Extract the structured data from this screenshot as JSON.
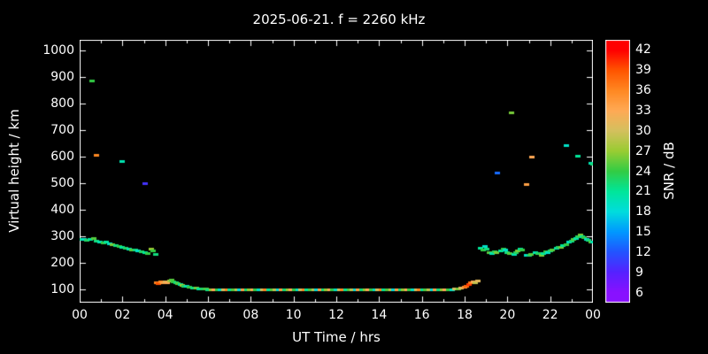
{
  "chart_data": {
    "type": "scatter",
    "title": "2025-06-21. f = 2260 kHz",
    "xlabel": "UT Time / hrs",
    "ylabel": "Virtual height / km",
    "xlim": [
      0,
      24
    ],
    "ylim": [
      50,
      1040
    ],
    "background": "#000000",
    "frame_color": "#ffffff",
    "grid": false,
    "xticks": {
      "values": [
        0,
        2,
        4,
        6,
        8,
        10,
        12,
        14,
        16,
        18,
        20,
        22,
        24
      ],
      "labels": [
        "00",
        "02",
        "04",
        "06",
        "08",
        "10",
        "12",
        "14",
        "16",
        "18",
        "20",
        "22",
        "00"
      ],
      "minor_values": [
        1,
        3,
        5,
        7,
        9,
        11,
        13,
        15,
        17,
        19,
        21,
        23
      ]
    },
    "yticks": {
      "values": [
        100,
        200,
        300,
        400,
        500,
        600,
        700,
        800,
        900,
        1000
      ],
      "labels": [
        "100",
        "200",
        "300",
        "400",
        "500",
        "600",
        "700",
        "800",
        "900",
        "1000"
      ]
    },
    "colorbar": {
      "label": "SNR / dB",
      "min": 4.5,
      "max": 43.5,
      "ticks": [
        42,
        39,
        36,
        33,
        30,
        27,
        24,
        21,
        18,
        15,
        12,
        9,
        6
      ]
    },
    "colormap": [
      {
        "value": 6,
        "color": "#8811ff"
      },
      {
        "value": 9,
        "color": "#5522ff"
      },
      {
        "value": 12,
        "color": "#2255ff"
      },
      {
        "value": 15,
        "color": "#0099ff"
      },
      {
        "value": 18,
        "color": "#00dddd"
      },
      {
        "value": 21,
        "color": "#00e699"
      },
      {
        "value": 24,
        "color": "#33cc44"
      },
      {
        "value": 27,
        "color": "#99cc33"
      },
      {
        "value": 30,
        "color": "#d4c05e"
      },
      {
        "value": 33,
        "color": "#ffaa55"
      },
      {
        "value": 36,
        "color": "#ff8822"
      },
      {
        "value": 39,
        "color": "#ff5500"
      },
      {
        "value": 42,
        "color": "#ff0000"
      }
    ],
    "points": [
      [
        0.05,
        291,
        21
      ],
      [
        0.2,
        289,
        19
      ],
      [
        0.35,
        286,
        23
      ],
      [
        0.5,
        290,
        21
      ],
      [
        0.65,
        293,
        25
      ],
      [
        0.8,
        285,
        22
      ],
      [
        0.95,
        281,
        20
      ],
      [
        1.1,
        278,
        24
      ],
      [
        1.25,
        281,
        21
      ],
      [
        1.4,
        274,
        19
      ],
      [
        1.55,
        270,
        26
      ],
      [
        1.7,
        267,
        22
      ],
      [
        1.85,
        263,
        24
      ],
      [
        2.0,
        259,
        21
      ],
      [
        2.15,
        257,
        23
      ],
      [
        2.3,
        254,
        20
      ],
      [
        2.45,
        251,
        25
      ],
      [
        2.6,
        249,
        22
      ],
      [
        2.75,
        247,
        19
      ],
      [
        2.9,
        244,
        23
      ],
      [
        3.05,
        241,
        21
      ],
      [
        3.2,
        238,
        24
      ],
      [
        3.35,
        252,
        27
      ],
      [
        3.45,
        247,
        24
      ],
      [
        3.55,
        234,
        22
      ],
      [
        3.6,
        128,
        36
      ],
      [
        3.7,
        125,
        39
      ],
      [
        3.8,
        129,
        36
      ],
      [
        3.9,
        126,
        34
      ],
      [
        4.0,
        131,
        31
      ],
      [
        4.1,
        128,
        33
      ],
      [
        4.2,
        134,
        28
      ],
      [
        4.3,
        137,
        25
      ],
      [
        4.4,
        130,
        24
      ],
      [
        4.5,
        126,
        22
      ],
      [
        4.6,
        122,
        25
      ],
      [
        4.7,
        119,
        21
      ],
      [
        4.8,
        116,
        27
      ],
      [
        4.9,
        114,
        23
      ],
      [
        5.0,
        112,
        20
      ],
      [
        5.15,
        110,
        24
      ],
      [
        5.3,
        108,
        22
      ],
      [
        5.45,
        107,
        26
      ],
      [
        5.6,
        105,
        21
      ],
      [
        5.75,
        104,
        23
      ],
      [
        5.9,
        103,
        25
      ],
      [
        6.0,
        100,
        22
      ],
      [
        6.15,
        99,
        27
      ],
      [
        6.3,
        100,
        33
      ],
      [
        6.45,
        101,
        24
      ],
      [
        6.6,
        100,
        19
      ],
      [
        6.75,
        99,
        30
      ],
      [
        6.9,
        100,
        36
      ],
      [
        7.05,
        100,
        21
      ],
      [
        7.2,
        101,
        25
      ],
      [
        7.35,
        100,
        29
      ],
      [
        7.5,
        99,
        18
      ],
      [
        7.65,
        100,
        34
      ],
      [
        7.8,
        100,
        22
      ],
      [
        7.95,
        99,
        27
      ],
      [
        8.1,
        100,
        33
      ],
      [
        8.25,
        101,
        24
      ],
      [
        8.4,
        100,
        19
      ],
      [
        8.55,
        99,
        30
      ],
      [
        8.7,
        100,
        36
      ],
      [
        8.85,
        100,
        21
      ],
      [
        9.0,
        101,
        25
      ],
      [
        9.15,
        100,
        29
      ],
      [
        9.3,
        99,
        18
      ],
      [
        9.45,
        100,
        34
      ],
      [
        9.6,
        100,
        22
      ],
      [
        9.75,
        99,
        27
      ],
      [
        9.9,
        100,
        33
      ],
      [
        10.05,
        101,
        24
      ],
      [
        10.2,
        100,
        19
      ],
      [
        10.35,
        99,
        30
      ],
      [
        10.5,
        100,
        36
      ],
      [
        10.65,
        100,
        21
      ],
      [
        10.8,
        101,
        25
      ],
      [
        10.95,
        100,
        29
      ],
      [
        11.1,
        99,
        18
      ],
      [
        11.25,
        100,
        34
      ],
      [
        11.4,
        100,
        22
      ],
      [
        11.55,
        99,
        27
      ],
      [
        11.7,
        100,
        33
      ],
      [
        11.85,
        101,
        24
      ],
      [
        12.0,
        100,
        19
      ],
      [
        12.15,
        99,
        30
      ],
      [
        12.3,
        100,
        36
      ],
      [
        12.45,
        100,
        21
      ],
      [
        12.6,
        101,
        25
      ],
      [
        12.75,
        100,
        29
      ],
      [
        12.9,
        99,
        18
      ],
      [
        13.05,
        100,
        34
      ],
      [
        13.2,
        100,
        22
      ],
      [
        13.35,
        99,
        27
      ],
      [
        13.5,
        100,
        33
      ],
      [
        13.65,
        101,
        24
      ],
      [
        13.8,
        100,
        19
      ],
      [
        13.95,
        99,
        30
      ],
      [
        14.1,
        100,
        36
      ],
      [
        14.25,
        100,
        21
      ],
      [
        14.4,
        101,
        25
      ],
      [
        14.55,
        100,
        29
      ],
      [
        14.7,
        99,
        18
      ],
      [
        14.85,
        100,
        34
      ],
      [
        15.0,
        100,
        22
      ],
      [
        15.15,
        99,
        27
      ],
      [
        15.3,
        100,
        33
      ],
      [
        15.45,
        101,
        24
      ],
      [
        15.6,
        100,
        19
      ],
      [
        15.75,
        99,
        30
      ],
      [
        15.9,
        100,
        36
      ],
      [
        16.05,
        100,
        21
      ],
      [
        16.2,
        101,
        25
      ],
      [
        16.35,
        100,
        29
      ],
      [
        16.5,
        99,
        18
      ],
      [
        16.65,
        100,
        34
      ],
      [
        16.8,
        100,
        22
      ],
      [
        16.95,
        99,
        27
      ],
      [
        17.1,
        100,
        33
      ],
      [
        17.25,
        101,
        24
      ],
      [
        17.4,
        100,
        19
      ],
      [
        17.55,
        102,
        30
      ],
      [
        17.7,
        104,
        26
      ],
      [
        17.85,
        106,
        31
      ],
      [
        18.0,
        110,
        35
      ],
      [
        18.1,
        115,
        38
      ],
      [
        18.2,
        121,
        40
      ],
      [
        18.3,
        127,
        37
      ],
      [
        18.4,
        131,
        33
      ],
      [
        18.5,
        128,
        29
      ],
      [
        18.6,
        134,
        31
      ],
      [
        18.75,
        257,
        21
      ],
      [
        18.85,
        249,
        24
      ],
      [
        18.95,
        262,
        19
      ],
      [
        19.05,
        253,
        22
      ],
      [
        19.15,
        241,
        25
      ],
      [
        19.3,
        236,
        20
      ],
      [
        19.4,
        243,
        23
      ],
      [
        19.5,
        239,
        26
      ],
      [
        19.7,
        246,
        21
      ],
      [
        19.8,
        253,
        24
      ],
      [
        19.9,
        249,
        19
      ],
      [
        20.0,
        241,
        22
      ],
      [
        20.1,
        237,
        25
      ],
      [
        20.3,
        233,
        20
      ],
      [
        20.4,
        239,
        23
      ],
      [
        20.5,
        246,
        26
      ],
      [
        20.6,
        253,
        21
      ],
      [
        20.7,
        249,
        24
      ],
      [
        20.9,
        231,
        19
      ],
      [
        21.0,
        229,
        22
      ],
      [
        21.1,
        234,
        25
      ],
      [
        21.3,
        241,
        20
      ],
      [
        21.45,
        237,
        23
      ],
      [
        21.6,
        231,
        26
      ],
      [
        21.7,
        236,
        21
      ],
      [
        21.8,
        243,
        24
      ],
      [
        21.9,
        239,
        19
      ],
      [
        22.0,
        246,
        22
      ],
      [
        22.1,
        251,
        25
      ],
      [
        22.3,
        256,
        20
      ],
      [
        22.4,
        261,
        23
      ],
      [
        22.5,
        259,
        26
      ],
      [
        22.6,
        266,
        21
      ],
      [
        22.75,
        271,
        24
      ],
      [
        22.9,
        279,
        19
      ],
      [
        23.0,
        283,
        22
      ],
      [
        23.1,
        289,
        25
      ],
      [
        23.2,
        293,
        20
      ],
      [
        23.3,
        299,
        23
      ],
      [
        23.4,
        306,
        26
      ],
      [
        23.5,
        301,
        21
      ],
      [
        23.6,
        296,
        24
      ],
      [
        23.7,
        291,
        19
      ],
      [
        23.8,
        286,
        22
      ],
      [
        23.9,
        281,
        25
      ],
      [
        23.98,
        279,
        20
      ],
      [
        0.6,
        888,
        24
      ],
      [
        0.78,
        608,
        36
      ],
      [
        2.0,
        583,
        20
      ],
      [
        3.05,
        500,
        10
      ],
      [
        19.55,
        540,
        13
      ],
      [
        20.2,
        768,
        26
      ],
      [
        20.9,
        497,
        34
      ],
      [
        21.15,
        600,
        33
      ],
      [
        22.75,
        643,
        19
      ],
      [
        23.3,
        602,
        21
      ],
      [
        23.9,
        576,
        20
      ],
      [
        23.98,
        572,
        22
      ]
    ]
  }
}
